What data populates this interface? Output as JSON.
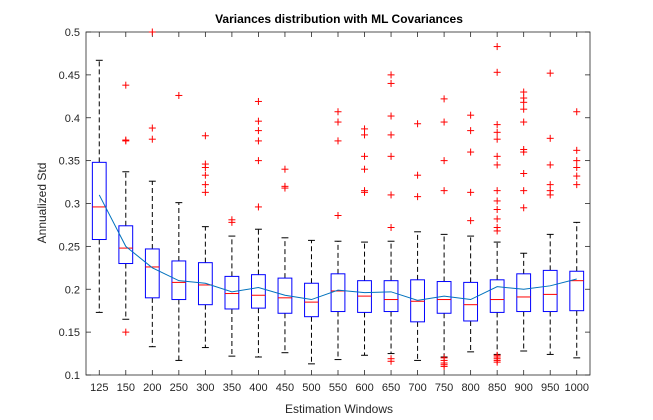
{
  "chart_data": {
    "type": "boxplot",
    "title": "Variances distribution with ML Covariances",
    "xlabel": "Estimation Windows",
    "ylabel": "Annualized Std",
    "ylim": [
      0.1,
      0.5
    ],
    "yticks": [
      0.1,
      0.15,
      0.2,
      0.25,
      0.3,
      0.35,
      0.4,
      0.45,
      0.5
    ],
    "ytick_labels": [
      "0.1",
      "0.15",
      "0.2",
      "0.25",
      "0.3",
      "0.35",
      "0.4",
      "0.45",
      "0.5"
    ],
    "grid": false,
    "categories": [
      "125",
      "150",
      "200",
      "250",
      "300",
      "350",
      "400",
      "450",
      "500",
      "550",
      "600",
      "650",
      "700",
      "750",
      "800",
      "850",
      "900",
      "950",
      "1000"
    ],
    "boxes": [
      {
        "q1": 0.258,
        "median": 0.296,
        "q3": 0.348,
        "whisker_low": 0.173,
        "whisker_high": 0.467,
        "outliers": []
      },
      {
        "q1": 0.23,
        "median": 0.248,
        "q3": 0.274,
        "whisker_low": 0.165,
        "whisker_high": 0.337,
        "outliers": [
          0.15,
          0.373,
          0.374,
          0.438
        ]
      },
      {
        "q1": 0.19,
        "median": 0.226,
        "q3": 0.247,
        "whisker_low": 0.133,
        "whisker_high": 0.326,
        "outliers": [
          0.375,
          0.388,
          0.5
        ]
      },
      {
        "q1": 0.188,
        "median": 0.208,
        "q3": 0.233,
        "whisker_low": 0.117,
        "whisker_high": 0.301,
        "outliers": [
          0.426
        ]
      },
      {
        "q1": 0.182,
        "median": 0.205,
        "q3": 0.231,
        "whisker_low": 0.132,
        "whisker_high": 0.273,
        "outliers": [
          0.313,
          0.322,
          0.333,
          0.342,
          0.346,
          0.379
        ]
      },
      {
        "q1": 0.177,
        "median": 0.195,
        "q3": 0.215,
        "whisker_low": 0.122,
        "whisker_high": 0.262,
        "outliers": [
          0.278,
          0.281
        ]
      },
      {
        "q1": 0.178,
        "median": 0.193,
        "q3": 0.217,
        "whisker_low": 0.121,
        "whisker_high": 0.27,
        "outliers": [
          0.296,
          0.35,
          0.373,
          0.385,
          0.396,
          0.419
        ]
      },
      {
        "q1": 0.172,
        "median": 0.19,
        "q3": 0.213,
        "whisker_low": 0.126,
        "whisker_high": 0.26,
        "outliers": [
          0.318,
          0.32,
          0.34
        ]
      },
      {
        "q1": 0.168,
        "median": 0.185,
        "q3": 0.207,
        "whisker_low": 0.113,
        "whisker_high": 0.257,
        "outliers": []
      },
      {
        "q1": 0.174,
        "median": 0.198,
        "q3": 0.218,
        "whisker_low": 0.118,
        "whisker_high": 0.256,
        "outliers": [
          0.286,
          0.373,
          0.395,
          0.407
        ]
      },
      {
        "q1": 0.173,
        "median": 0.192,
        "q3": 0.21,
        "whisker_low": 0.123,
        "whisker_high": 0.255,
        "outliers": [
          0.313,
          0.315,
          0.34,
          0.355,
          0.38,
          0.387
        ]
      },
      {
        "q1": 0.174,
        "median": 0.188,
        "q3": 0.21,
        "whisker_low": 0.125,
        "whisker_high": 0.256,
        "outliers": [
          0.116,
          0.119,
          0.272,
          0.31,
          0.355,
          0.38,
          0.402,
          0.44,
          0.45
        ]
      },
      {
        "q1": 0.162,
        "median": 0.186,
        "q3": 0.211,
        "whisker_low": 0.117,
        "whisker_high": 0.267,
        "outliers": [
          0.308,
          0.333,
          0.393
        ]
      },
      {
        "q1": 0.172,
        "median": 0.188,
        "q3": 0.209,
        "whisker_low": 0.121,
        "whisker_high": 0.264,
        "outliers": [
          0.11,
          0.112,
          0.114,
          0.117,
          0.12,
          0.315,
          0.35,
          0.395,
          0.422
        ]
      },
      {
        "q1": 0.163,
        "median": 0.182,
        "q3": 0.208,
        "whisker_low": 0.127,
        "whisker_high": 0.262,
        "outliers": [
          0.28,
          0.313,
          0.36,
          0.385,
          0.403
        ]
      },
      {
        "q1": 0.173,
        "median": 0.188,
        "q3": 0.211,
        "whisker_low": 0.124,
        "whisker_high": 0.255,
        "outliers": [
          0.115,
          0.117,
          0.119,
          0.121,
          0.123,
          0.268,
          0.272,
          0.282,
          0.293,
          0.303,
          0.315,
          0.345,
          0.355,
          0.375,
          0.383,
          0.392,
          0.453,
          0.483
        ]
      },
      {
        "q1": 0.174,
        "median": 0.191,
        "q3": 0.218,
        "whisker_low": 0.128,
        "whisker_high": 0.242,
        "outliers": [
          0.295,
          0.315,
          0.335,
          0.36,
          0.363,
          0.395,
          0.41,
          0.418,
          0.423,
          0.43
        ]
      },
      {
        "q1": 0.174,
        "median": 0.194,
        "q3": 0.222,
        "whisker_low": 0.124,
        "whisker_high": 0.264,
        "outliers": [
          0.31,
          0.315,
          0.322,
          0.345,
          0.376,
          0.452
        ]
      },
      {
        "q1": 0.175,
        "median": 0.21,
        "q3": 0.221,
        "whisker_low": 0.12,
        "whisker_high": 0.278,
        "outliers": [
          0.322,
          0.332,
          0.342,
          0.35,
          0.362,
          0.407
        ]
      }
    ],
    "mean_line": [
      0.31,
      0.25,
      0.225,
      0.21,
      0.207,
      0.197,
      0.202,
      0.193,
      0.188,
      0.199,
      0.196,
      0.197,
      0.187,
      0.192,
      0.188,
      0.203,
      0.2,
      0.204,
      0.212
    ],
    "colors": {
      "box": "#0000ff",
      "median": "#ff0000",
      "whisker": "#000000",
      "outlier": "#ff0000",
      "mean_line": "#0072bd",
      "axes": "#262626"
    }
  }
}
